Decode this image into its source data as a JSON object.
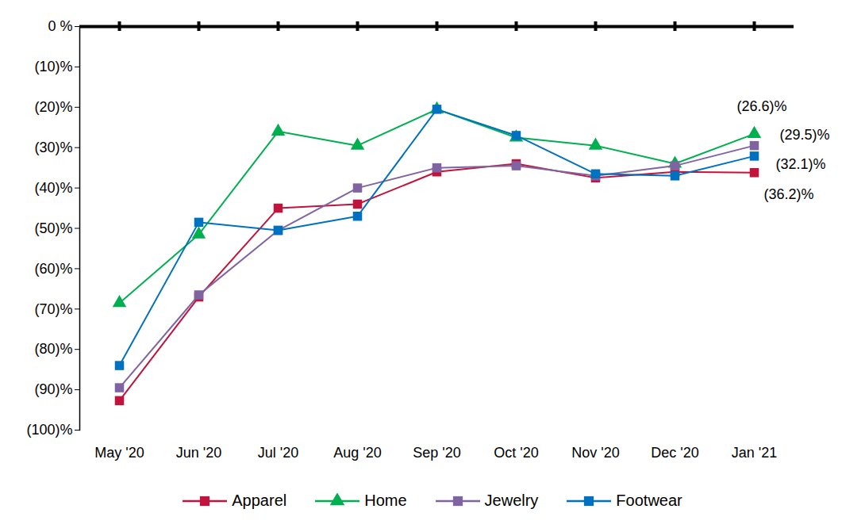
{
  "chart_data": {
    "type": "line",
    "categories": [
      "May '20",
      "Jun '20",
      "Jul '20",
      "Aug '20",
      "Sep '20",
      "Oct '20",
      "Nov '20",
      "Dec '20",
      "Jan '21"
    ],
    "series": [
      {
        "name": "Apparel",
        "color": "#c0143c",
        "marker": "square",
        "values": [
          -92.7,
          -67,
          -45,
          -44,
          -36,
          -34,
          -37.5,
          -36,
          -36.2
        ]
      },
      {
        "name": "Home",
        "color": "#00b050",
        "marker": "triangle",
        "values": [
          -68.5,
          -51.5,
          -26,
          -29.5,
          -20.5,
          -27.5,
          -29.5,
          -34,
          -26.6
        ]
      },
      {
        "name": "Jewelry",
        "color": "#8064a2",
        "marker": "square",
        "values": [
          -89.5,
          -66.5,
          -50.5,
          -40,
          -35,
          -34.5,
          -37,
          -34.5,
          -29.5
        ]
      },
      {
        "name": "Footwear",
        "color": "#0070c0",
        "marker": "square",
        "values": [
          -84,
          -48.5,
          -50.5,
          -47,
          -20.5,
          -27,
          -36.5,
          -37,
          -32.1
        ]
      }
    ],
    "ylim": [
      -100,
      0
    ],
    "yticks": [
      {
        "value": 0,
        "label": "0 %"
      },
      {
        "value": -10,
        "label": "(10)%"
      },
      {
        "value": -20,
        "label": "(20)%"
      },
      {
        "value": -30,
        "label": "(30)%"
      },
      {
        "value": -40,
        "label": "(40)%"
      },
      {
        "value": -50,
        "label": "(50)%"
      },
      {
        "value": -60,
        "label": "(60)%"
      },
      {
        "value": -70,
        "label": "(70)%"
      },
      {
        "value": -80,
        "label": "(80)%"
      },
      {
        "value": -90,
        "label": "(90)%"
      },
      {
        "value": -100,
        "label": "(100)%"
      }
    ],
    "grid": false,
    "legend": "bottom",
    "annotations": [
      {
        "text": "(26.6)%",
        "x": "Jan '21",
        "y": -26.6
      },
      {
        "text": "(29.5)%",
        "x": "Jan '21",
        "y": -29.5
      },
      {
        "text": "(32.1)%",
        "x": "Jan '21",
        "y": -32.1
      },
      {
        "text": "(36.2)%",
        "x": "Jan '21",
        "y": -36.2
      }
    ]
  }
}
